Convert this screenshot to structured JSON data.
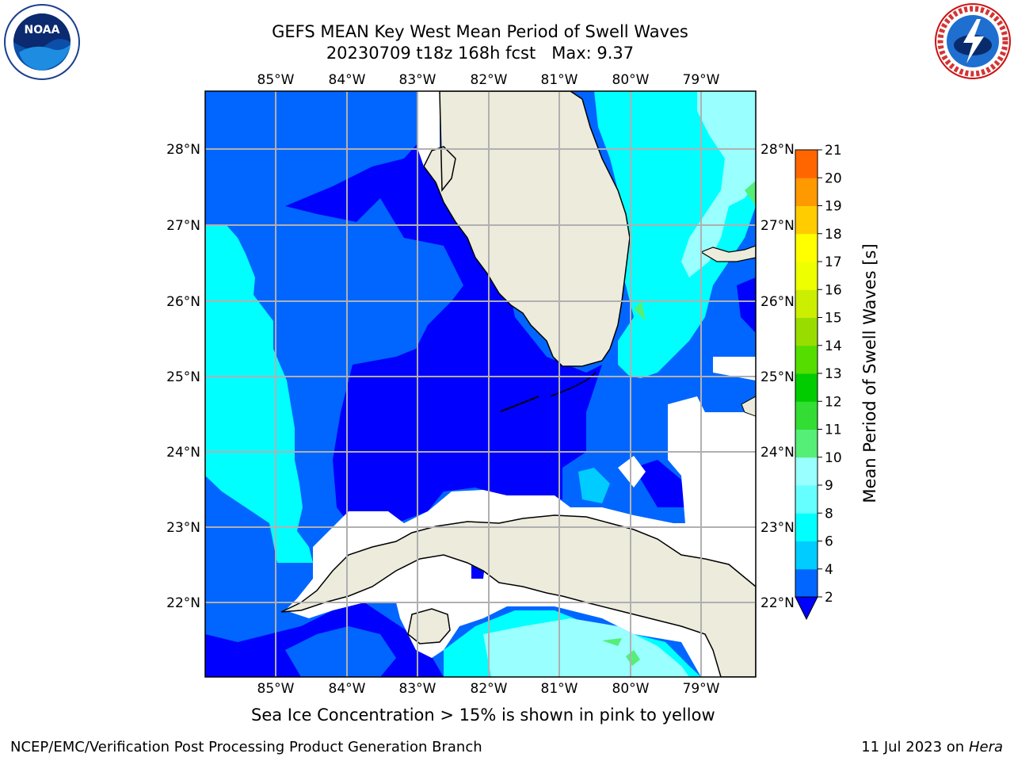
{
  "header": {
    "title_line1": "GEFS MEAN Key West Mean Period of Swell Waves",
    "title_line2": "20230709 t18z 168h fcst   Max: 9.37"
  },
  "logos": {
    "noaa": {
      "icon": "noaa-logo",
      "label": "NOAA"
    },
    "nws": {
      "icon": "nws-logo",
      "label": "NATIONAL WEATHER SERVICE"
    }
  },
  "map": {
    "lon_labels": [
      "85°W",
      "84°W",
      "83°W",
      "82°W",
      "81°W",
      "80°W",
      "79°W"
    ],
    "lat_labels": [
      "28°N",
      "27°N",
      "26°N",
      "25°N",
      "24°N",
      "23°N",
      "22°N"
    ],
    "colors": {
      "land": "#ecebdc",
      "coast": "#000000",
      "grid": "#b0b0b0"
    }
  },
  "colorbar": {
    "label": "Mean Period of Swell Waves [s]",
    "ticks": [
      "2",
      "4",
      "6",
      "8",
      "9",
      "10",
      "11",
      "12",
      "13",
      "14",
      "15",
      "16",
      "17",
      "18",
      "19",
      "20",
      "21"
    ],
    "colors": [
      "#0066ff",
      "#00ccff",
      "#00ffff",
      "#66ffff",
      "#99ffff",
      "#55ee77",
      "#33dd33",
      "#00cc00",
      "#55dd00",
      "#99dd00",
      "#ccee00",
      "#eeff00",
      "#ffff00",
      "#ffcc00",
      "#ff9900",
      "#ff6600",
      "#ff3300",
      "#ff0000"
    ],
    "under_color": "#0000ff"
  },
  "caption": "Sea Ice Concentration > 15% is shown in pink to yellow",
  "footer": {
    "left": "NCEP/EMC/Verification Post Processing Product Generation Branch",
    "date": "11 Jul 2023 on ",
    "machine": "Hera"
  }
}
